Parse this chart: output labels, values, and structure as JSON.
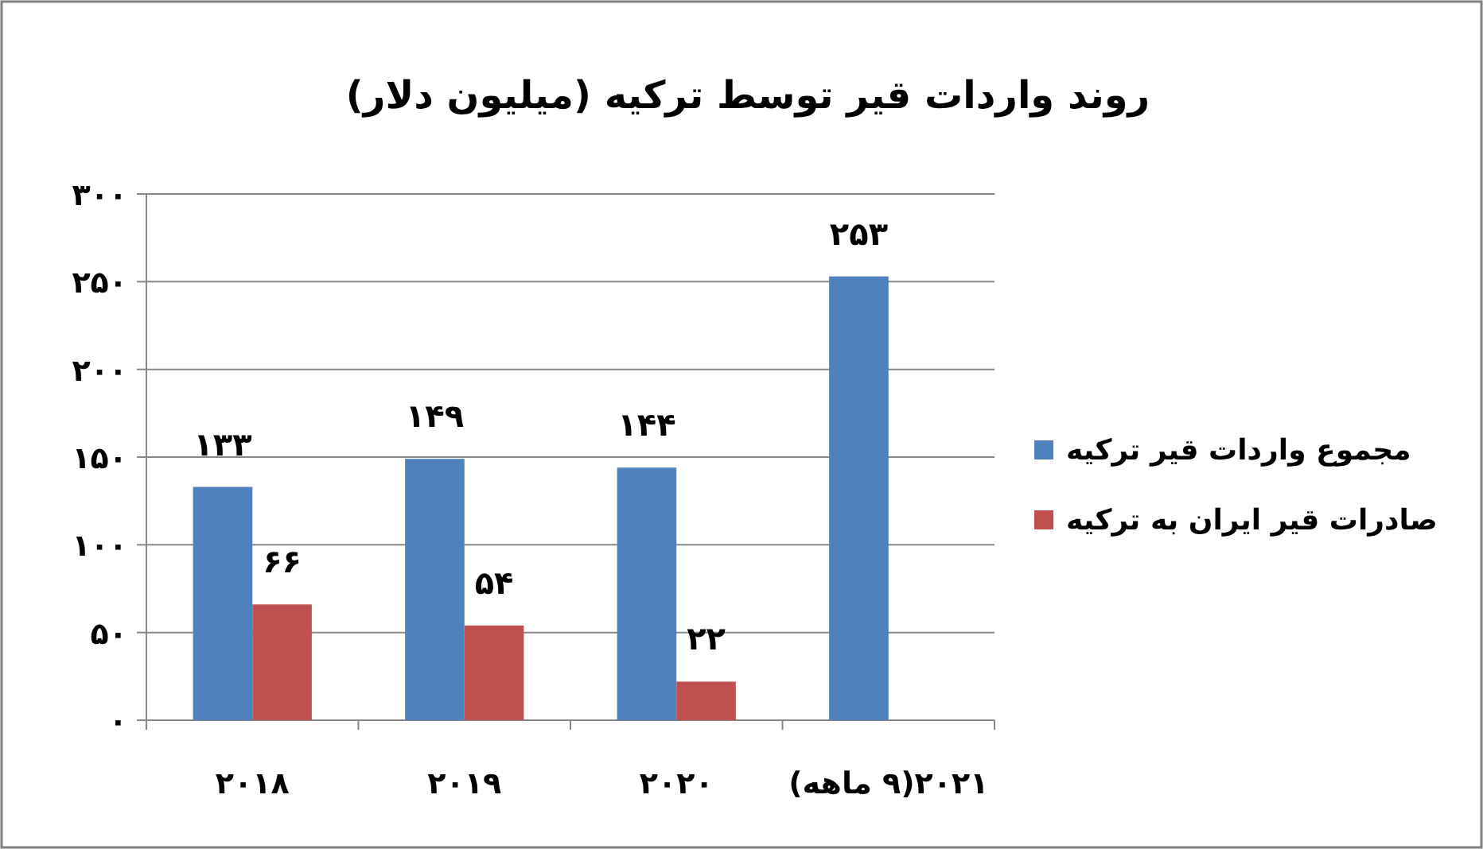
{
  "chart_data": {
    "type": "bar",
    "title": "روند واردات قیر توسط ترکیه (میلیون دلار)",
    "categories": [
      "۲۰۱۸",
      "۲۰۱۹",
      "۲۰۲۰",
      "۲۰۲۱(۹ ماهه)"
    ],
    "series": [
      {
        "name": "مجموع واردات قیر ترکیه",
        "color": "#4f81bd",
        "values": [
          133,
          149,
          144,
          253
        ],
        "value_labels": [
          "۱۳۳",
          "۱۴۹",
          "۱۴۴",
          "۲۵۳"
        ]
      },
      {
        "name": "صادرات قیر ایران به ترکیه",
        "color": "#c0504d",
        "values": [
          66,
          54,
          22,
          null
        ],
        "value_labels": [
          "۶۶",
          "۵۴",
          "۲۲",
          null
        ]
      }
    ],
    "ylim": [
      0,
      300
    ],
    "yticks": [
      {
        "value": 0,
        "label": "۰"
      },
      {
        "value": 50,
        "label": "۵۰"
      },
      {
        "value": 100,
        "label": "۱۰۰"
      },
      {
        "value": 150,
        "label": "۱۵۰"
      },
      {
        "value": 200,
        "label": "۲۰۰"
      },
      {
        "value": 250,
        "label": "۲۵۰"
      },
      {
        "value": 300,
        "label": "۳۰۰"
      }
    ],
    "grid": "y",
    "legend": "right"
  }
}
